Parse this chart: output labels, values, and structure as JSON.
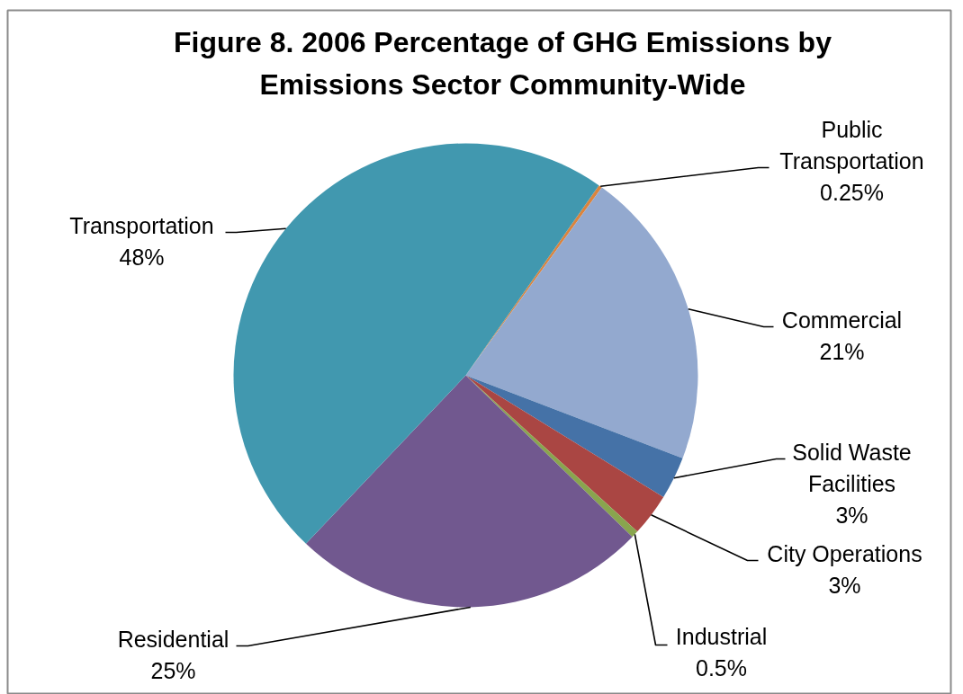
{
  "chart_data": {
    "type": "pie",
    "title": "Figure 8. 2006 Percentage of GHG Emissions by Emissions Sector Community-Wide",
    "categories": [
      "Public Transportation",
      "Commercial",
      "Solid Waste Facilities",
      "City Operations",
      "Industrial",
      "Residential",
      "Transportation"
    ],
    "values": [
      0.25,
      21,
      3,
      3,
      0.5,
      25,
      48
    ],
    "colors": [
      "#db843d",
      "#93a9cf",
      "#4572a7",
      "#aa4643",
      "#89a54e",
      "#71588f",
      "#4198af"
    ],
    "value_labels": [
      "0.25%",
      "21%",
      "3%",
      "3%",
      "0.5%",
      "25%",
      "48%"
    ]
  }
}
